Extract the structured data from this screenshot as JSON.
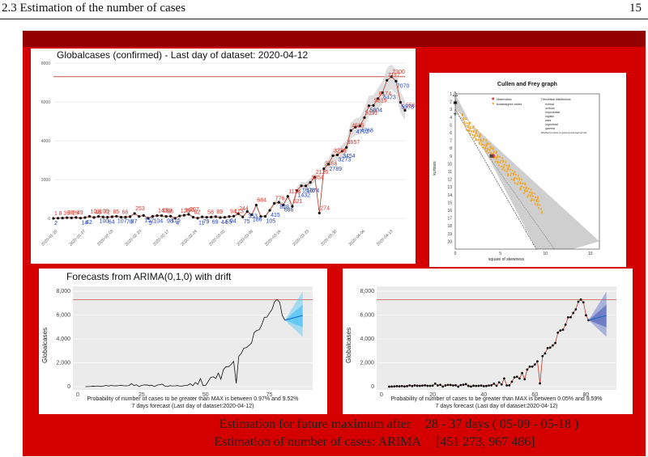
{
  "header": {
    "section": "2.3 Estimation of the number of cases",
    "page": "15"
  },
  "footer": {
    "line1_label": "Estimation for future maximum after",
    "line1_value": "28 - 37 days ( 05-09 - 05-18 )",
    "line2_label": "Estimation of number of cases: ARIMA",
    "line2_value": "[451 273, 967 486]"
  },
  "colors": {
    "slide_red": "#d40000",
    "slide_dark": "#930000",
    "max_line": "#c0392b",
    "forecast": "#4fc3f7"
  },
  "chart_data": [
    {
      "type": "line",
      "title": "Globalcases (confirmed) - Last day of dataset: 2020-04-12",
      "ylim": [
        0,
        8000
      ],
      "yticks": [
        "0",
        "2000",
        "4000",
        "6000",
        "8000"
      ],
      "xticks": [
        "2020-01-20",
        "2020-01-27",
        "2020-02-03",
        "2020-02-10",
        "2020-02-17",
        "2020-02-24",
        "2020-03-02",
        "2020-03-09",
        "2020-03-16",
        "2020-03-23",
        "2020-03-30",
        "2020-04-06",
        "2020-04-13"
      ],
      "max_value": 7300,
      "values": [
        1,
        8,
        16,
        38,
        26,
        49,
        14,
        42,
        103,
        46,
        100,
        72,
        64,
        85,
        107,
        66,
        70,
        87,
        253,
        100,
        152,
        5,
        104,
        143,
        139,
        98,
        115,
        4,
        125,
        160,
        207,
        62,
        11,
        79,
        58,
        69,
        89,
        44,
        55,
        94,
        113,
        244,
        75,
        353,
        186,
        684,
        98,
        105,
        415,
        776,
        828,
        686,
        1134,
        621,
        1432,
        1678,
        1674,
        1854,
        2120,
        274,
        2556,
        2789,
        3228,
        3273,
        3454,
        3657,
        4525,
        4702,
        4768,
        5191,
        5804,
        5819,
        6174,
        6473,
        7117,
        7300,
        7070,
        5978,
        5568
      ],
      "labels_red": [
        "1",
        "8",
        "16",
        "38",
        "26",
        "49",
        "103",
        "46",
        "100",
        "72",
        "85",
        "66",
        "253",
        "143",
        "139",
        "98",
        "125",
        "160",
        "207",
        "62",
        "58",
        "89",
        "244",
        "684",
        "94",
        "113",
        "776",
        "1134",
        "1854",
        "2120",
        "621",
        "274",
        "2556",
        "3228",
        "3657",
        "4525",
        "5819",
        "5191",
        "6174",
        "7117",
        "7300",
        "5568"
      ],
      "labels_blue": [
        "2",
        "14",
        "42",
        "64",
        "107",
        "87",
        "70",
        "100",
        "152",
        "5",
        "104",
        "115",
        "4",
        "11",
        "79",
        "69",
        "44",
        "55",
        "94",
        "353",
        "75",
        "186",
        "98",
        "105",
        "415",
        "828",
        "686",
        "1432",
        "1674",
        "1678",
        "2789",
        "3273",
        "3454",
        "4702",
        "4768",
        "5804",
        "6473",
        "7070",
        "5978"
      ]
    },
    {
      "type": "scatter",
      "title": "Cullen and Frey graph",
      "xlabel": "square of skewness",
      "ylabel": "kurtosis",
      "xticks": [
        "0",
        "5",
        "10",
        "15"
      ],
      "yticks": [
        "1",
        "2",
        "3",
        "4",
        "5",
        "6",
        "7",
        "8",
        "9",
        "10",
        "11",
        "12",
        "13",
        "14",
        "15",
        "16",
        "17",
        "18",
        "19",
        "20"
      ],
      "legend": [
        "Observation",
        "bootstrapped values"
      ],
      "theoretical_title": "Theoretical distributions",
      "theoretical": [
        "normal",
        "uniform",
        "exponential",
        "logistic",
        "beta",
        "lognormal",
        "gamma"
      ],
      "note": "(Weibull is close to gamma and lognormal)"
    },
    {
      "type": "line",
      "title": "Forecasts from ARIMA(0,1,0) with drift",
      "ylabel": "Globalcases",
      "ylim": [
        0,
        8000
      ],
      "yticks": [
        "0",
        "2,000",
        "4,000",
        "6,000",
        "8,000"
      ],
      "xticks": [
        "0",
        "25",
        "50",
        "75"
      ],
      "caption1": "Probability of number of cases to be greater than MAX is between 0.97% and 9.52%",
      "caption2": "7 days forecast (Last day of dataset:2020-04-12)"
    },
    {
      "type": "line",
      "ylabel": "Globalcases",
      "ylim": [
        0,
        8000
      ],
      "yticks": [
        "0",
        "2,000",
        "4,000",
        "6,000",
        "8,000"
      ],
      "xticks": [
        "0",
        "20",
        "40",
        "60",
        "80"
      ],
      "caption1": "Probability of number of cases to be greater than MAX is between 0.05% and 9.59%",
      "caption2": "7 days forecast (Last day of dataset:2020-04-12)"
    }
  ]
}
